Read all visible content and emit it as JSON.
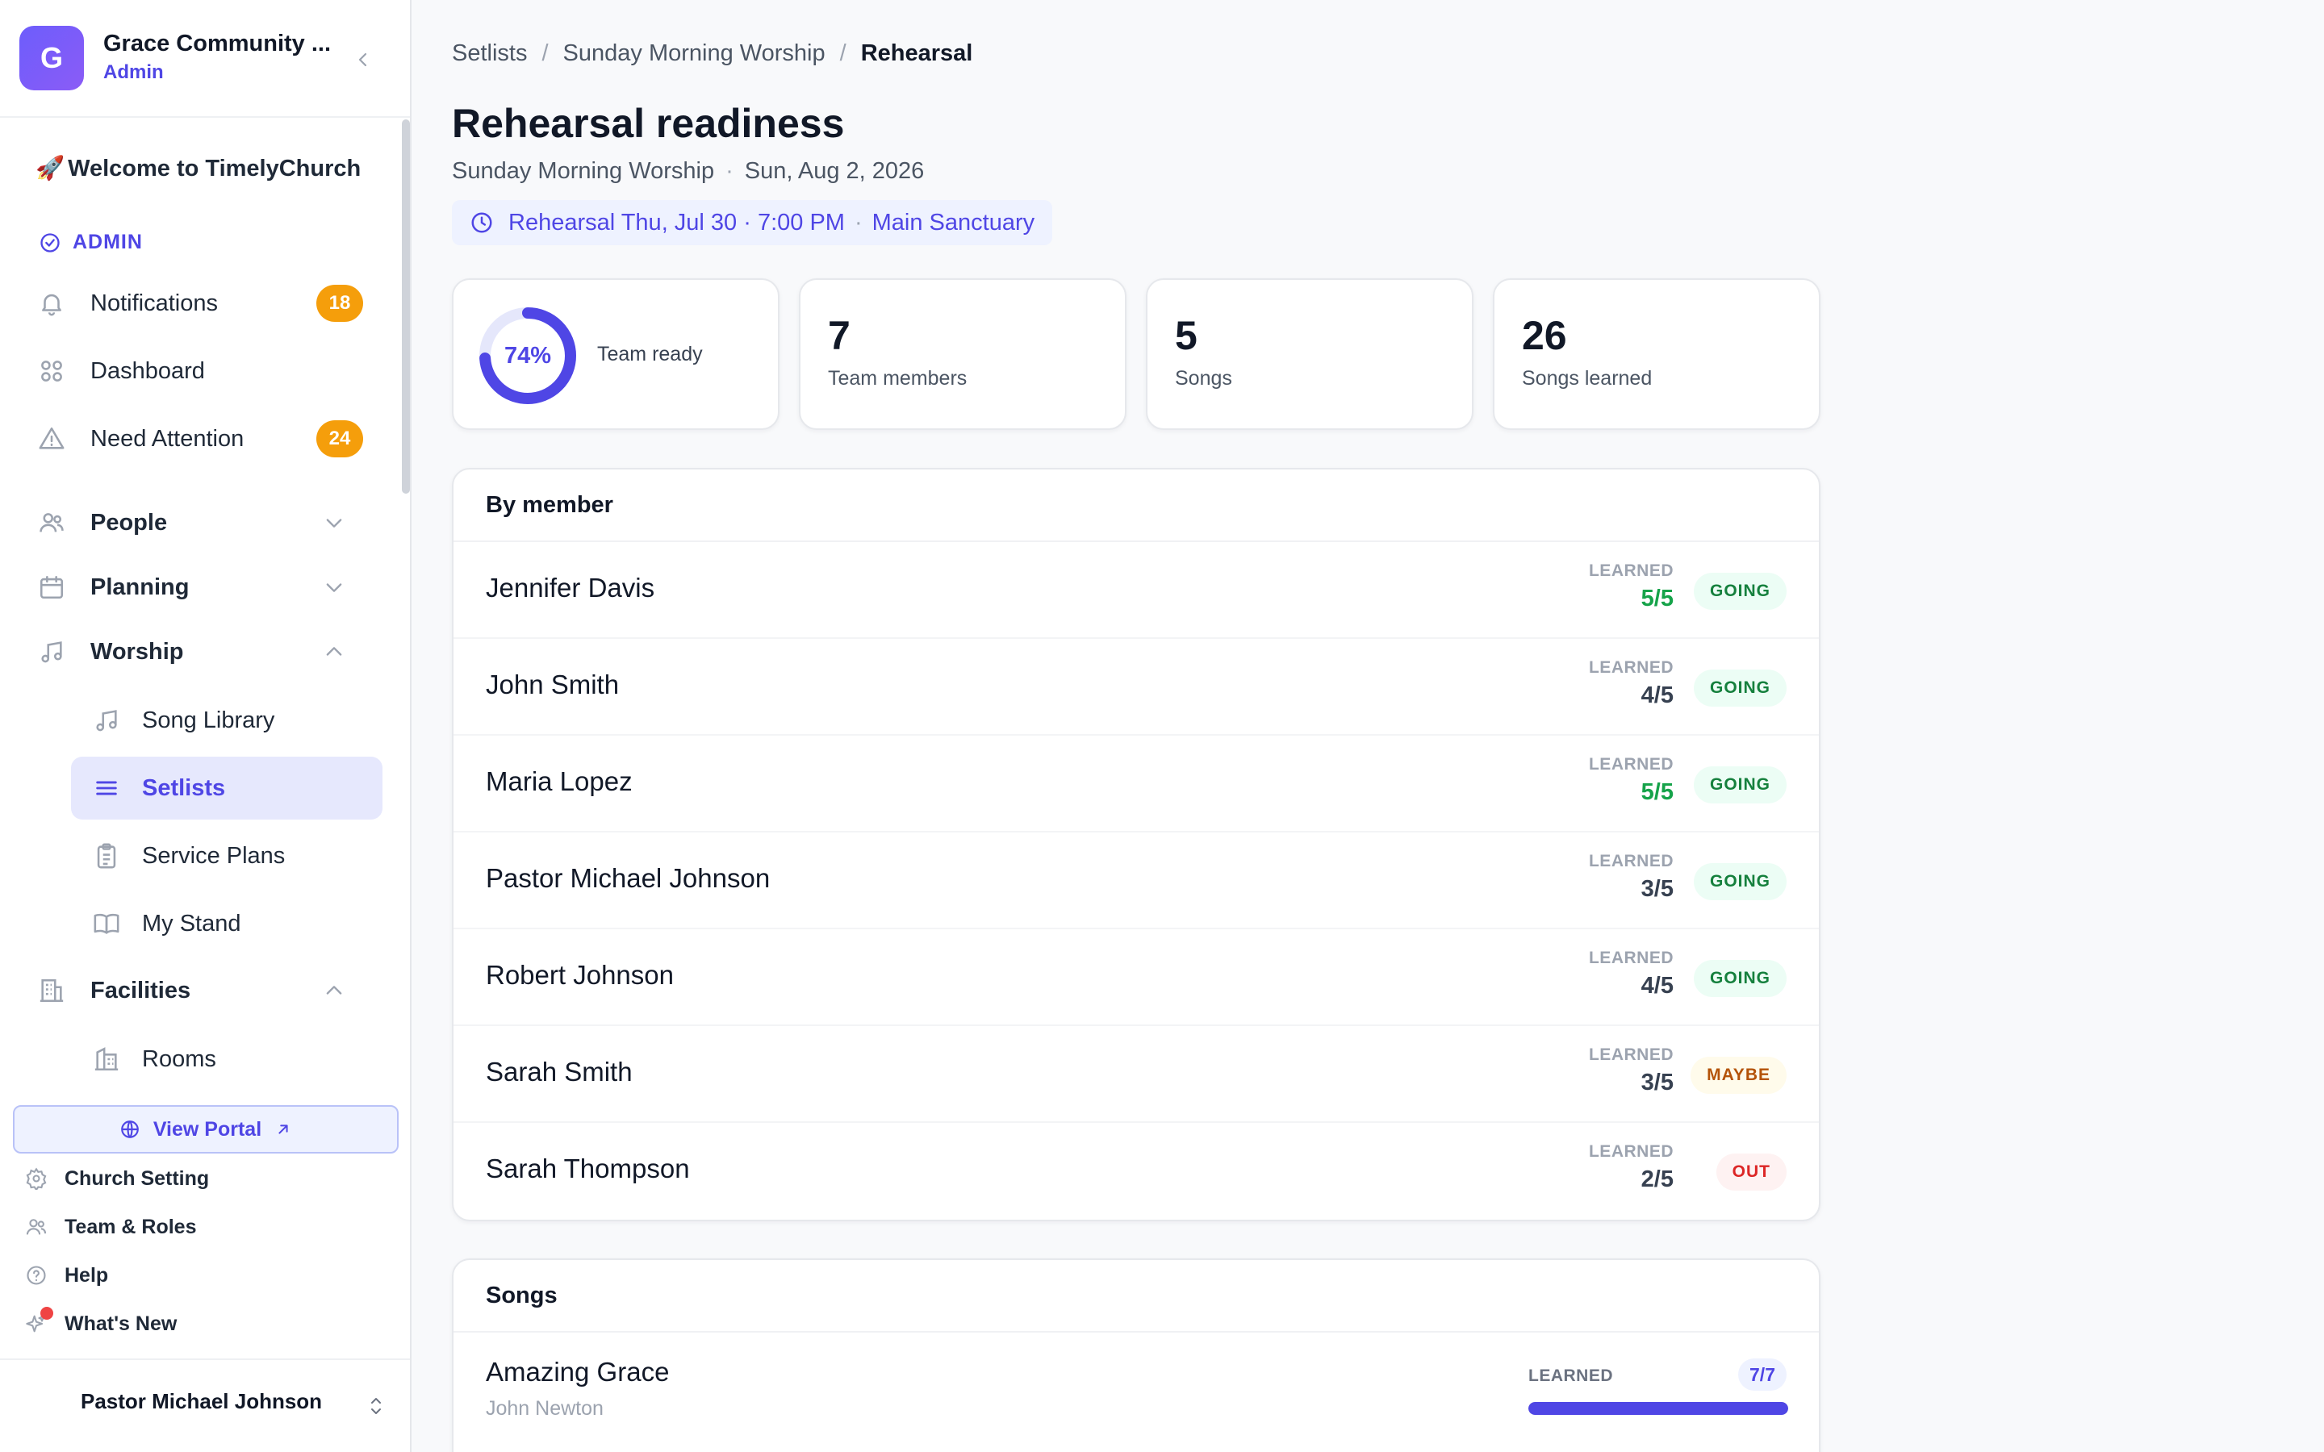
{
  "org": {
    "logo_letter": "G",
    "name": "Grace Community ...",
    "role": "Admin"
  },
  "sidebar": {
    "welcome": "Welcome to TimelyChurch",
    "welcome_emoji": "🚀",
    "section_label": "ADMIN",
    "items": [
      {
        "label": "Notifications",
        "icon": "bell-icon",
        "badge": "18"
      },
      {
        "label": "Dashboard",
        "icon": "grid-icon"
      },
      {
        "label": "Need Attention",
        "icon": "warning-icon",
        "badge": "24"
      },
      {
        "label": "People",
        "icon": "people-icon",
        "expanded": false
      },
      {
        "label": "Planning",
        "icon": "calendar-icon",
        "expanded": false
      },
      {
        "label": "Worship",
        "icon": "music-icon",
        "expanded": true
      },
      {
        "label": "Facilities",
        "icon": "building-icon",
        "expanded": true
      }
    ],
    "worship_sub": [
      {
        "label": "Song Library",
        "icon": "music-icon"
      },
      {
        "label": "Setlists",
        "icon": "list-icon",
        "active": true
      },
      {
        "label": "Service Plans",
        "icon": "clipboard-icon"
      },
      {
        "label": "My Stand",
        "icon": "book-icon"
      }
    ],
    "facilities_sub": [
      {
        "label": "Rooms",
        "icon": "room-icon"
      }
    ],
    "portal_button": "View Portal",
    "bottom_links": [
      {
        "label": "Church Setting",
        "icon": "gear-icon"
      },
      {
        "label": "Team & Roles",
        "icon": "team-icon"
      },
      {
        "label": "Help",
        "icon": "help-icon"
      },
      {
        "label": "What's New",
        "icon": "sparkle-icon",
        "dot": true
      }
    ],
    "user_name": "Pastor Michael Johnson"
  },
  "breadcrumb": [
    "Setlists",
    "Sunday Morning Worship",
    "Rehearsal"
  ],
  "page": {
    "title": "Rehearsal readiness",
    "service_name": "Sunday Morning Worship",
    "service_date": "Sun, Aug 2, 2026",
    "rehearsal_time": "Rehearsal Thu, Jul 30 · 7:00 PM",
    "rehearsal_location": "Main Sanctuary"
  },
  "stats": {
    "team_ready_percent": 74,
    "team_ready_display": "74%",
    "team_ready_label": "Team ready",
    "team_members": "7",
    "team_members_label": "Team members",
    "songs": "5",
    "songs_label": "Songs",
    "songs_learned": "26",
    "songs_learned_label": "Songs learned"
  },
  "by_member": {
    "heading": "By member",
    "learned_label": "LEARNED",
    "rows": [
      {
        "name": "Jennifer Davis",
        "learned": "5/5",
        "full": true,
        "status": "GOING"
      },
      {
        "name": "John Smith",
        "learned": "4/5",
        "full": false,
        "status": "GOING"
      },
      {
        "name": "Maria Lopez",
        "learned": "5/5",
        "full": true,
        "status": "GOING"
      },
      {
        "name": "Pastor Michael Johnson",
        "learned": "3/5",
        "full": false,
        "status": "GOING"
      },
      {
        "name": "Robert Johnson",
        "learned": "4/5",
        "full": false,
        "status": "GOING"
      },
      {
        "name": "Sarah Smith",
        "learned": "3/5",
        "full": false,
        "status": "MAYBE"
      },
      {
        "name": "Sarah Thompson",
        "learned": "2/5",
        "full": false,
        "status": "OUT"
      }
    ]
  },
  "songs": {
    "heading": "Songs",
    "learned_label": "LEARNED",
    "rows": [
      {
        "title": "Amazing Grace",
        "author": "John Newton",
        "learned": "7/7",
        "progress": 1.0
      }
    ]
  },
  "colors": {
    "accent": "#4f46e5",
    "going": "#15803d",
    "maybe": "#b45309",
    "out": "#dc2626",
    "badge": "#f59e0b"
  }
}
